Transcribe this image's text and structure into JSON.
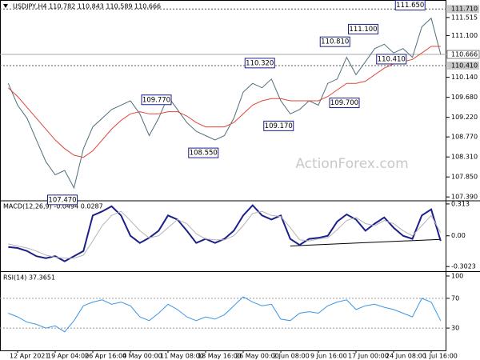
{
  "chart_data": [
    {
      "type": "line",
      "title": "USDJPY,H4 110.782 110.843 110.589 110.666",
      "watermark": "ActionForex.com",
      "ylim": [
        107.32,
        111.88
      ],
      "yticks": [
        {
          "value": 111.515,
          "label": "111.515"
        },
        {
          "value": 111.1,
          "label": "111.100"
        },
        {
          "value": 110.14,
          "label": "110.140"
        },
        {
          "value": 109.68,
          "label": "109.680"
        },
        {
          "value": 109.22,
          "label": "109.220"
        },
        {
          "value": 108.77,
          "label": "108.770"
        },
        {
          "value": 108.31,
          "label": "108.310"
        },
        {
          "value": 107.85,
          "label": "107.850"
        },
        {
          "value": 107.39,
          "label": "107.390"
        }
      ],
      "levels": [
        {
          "value": 111.71,
          "label": "111.710"
        },
        {
          "value": 110.41,
          "label": "110.410"
        }
      ],
      "last": {
        "value": 110.666,
        "label": "110.666"
      },
      "series": [
        {
          "name": "USDJPY",
          "color": "#4d6f7c",
          "values": [
            110.0,
            109.5,
            109.2,
            108.7,
            108.2,
            107.9,
            108.0,
            107.6,
            108.5,
            109.0,
            109.2,
            109.4,
            109.5,
            109.6,
            109.3,
            108.8,
            109.2,
            109.7,
            109.4,
            109.1,
            108.9,
            108.8,
            108.7,
            108.8,
            109.2,
            109.8,
            110.0,
            109.9,
            110.1,
            109.6,
            109.3,
            109.4,
            109.6,
            109.5,
            110.0,
            110.1,
            110.6,
            110.2,
            110.5,
            110.8,
            110.9,
            110.7,
            110.8,
            110.6,
            111.3,
            111.5,
            110.67
          ]
        },
        {
          "name": "MA",
          "color": "#e0453a",
          "values": [
            109.9,
            109.7,
            109.45,
            109.2,
            108.95,
            108.7,
            108.5,
            108.35,
            108.3,
            108.45,
            108.7,
            108.95,
            109.15,
            109.3,
            109.35,
            109.3,
            109.3,
            109.35,
            109.35,
            109.25,
            109.1,
            109.0,
            109.0,
            109.0,
            109.1,
            109.3,
            109.5,
            109.6,
            109.65,
            109.65,
            109.6,
            109.6,
            109.6,
            109.6,
            109.7,
            109.85,
            110.0,
            110.0,
            110.05,
            110.2,
            110.35,
            110.45,
            110.5,
            110.55,
            110.7,
            110.85,
            110.85
          ]
        }
      ],
      "annotations": [
        {
          "label": "111.650",
          "value": 111.65,
          "index": 44
        },
        {
          "label": "111.100",
          "value": 111.1,
          "index": 39
        },
        {
          "label": "110.810",
          "value": 110.81,
          "index": 36
        },
        {
          "label": "110.410",
          "value": 110.41,
          "index": 42
        },
        {
          "label": "110.320",
          "value": 110.32,
          "index": 28
        },
        {
          "label": "109.770",
          "value": 109.77,
          "index": 17
        },
        {
          "label": "109.700",
          "value": 109.7,
          "index": 37
        },
        {
          "label": "109.170",
          "value": 109.17,
          "index": 30
        },
        {
          "label": "108.550",
          "value": 108.55,
          "index": 22
        },
        {
          "label": "107.470",
          "value": 107.47,
          "index": 7
        }
      ]
    },
    {
      "type": "line",
      "title": "MACD(12,26,9) -0.0494 0.0287",
      "ylim": [
        -0.34,
        0.336
      ],
      "yticks": [
        0.313,
        {
          "value": 0,
          "label": "0.00"
        },
        -0.3023
      ],
      "series": [
        {
          "name": "MACD",
          "color": "#1b1f8a",
          "values": [
            -0.11,
            -0.12,
            -0.15,
            -0.2,
            -0.22,
            -0.2,
            -0.25,
            -0.2,
            -0.15,
            0.2,
            0.24,
            0.29,
            0.2,
            0.0,
            -0.07,
            -0.02,
            0.05,
            0.2,
            0.16,
            0.05,
            -0.07,
            -0.03,
            -0.07,
            -0.03,
            0.05,
            0.2,
            0.3,
            0.2,
            0.16,
            0.2,
            -0.03,
            -0.09,
            -0.03,
            -0.02,
            0.0,
            0.14,
            0.21,
            0.16,
            0.05,
            0.12,
            0.18,
            0.08,
            0.0,
            -0.03,
            0.2,
            0.26,
            -0.05
          ]
        },
        {
          "name": "Signal",
          "color": "#b4b4b4",
          "values": [
            -0.08,
            -0.1,
            -0.12,
            -0.15,
            -0.19,
            -0.21,
            -0.22,
            -0.22,
            -0.19,
            -0.05,
            0.1,
            0.2,
            0.24,
            0.15,
            0.05,
            -0.02,
            0.0,
            0.08,
            0.16,
            0.12,
            0.02,
            -0.03,
            -0.04,
            -0.04,
            0.0,
            0.1,
            0.22,
            0.24,
            0.2,
            0.19,
            0.08,
            -0.04,
            -0.05,
            -0.03,
            -0.02,
            0.06,
            0.15,
            0.18,
            0.12,
            0.1,
            0.15,
            0.12,
            0.05,
            0.0,
            0.1,
            0.2,
            0.03
          ]
        }
      ],
      "trendline": {
        "index": [
          30,
          46
        ],
        "values": [
          -0.1,
          -0.035
        ]
      }
    },
    {
      "type": "line",
      "title": "RSI(14) 37.3651",
      "ylim": [
        0,
        100
      ],
      "yticks": [
        100,
        70,
        30
      ],
      "levels": [
        70,
        30
      ],
      "series": [
        {
          "name": "RSI",
          "color": "#3b97e6",
          "values": [
            50,
            45,
            38,
            35,
            30,
            33,
            25,
            40,
            60,
            65,
            68,
            62,
            65,
            60,
            45,
            40,
            50,
            62,
            55,
            45,
            40,
            45,
            42,
            48,
            60,
            72,
            65,
            60,
            62,
            42,
            40,
            50,
            52,
            50,
            60,
            65,
            68,
            55,
            60,
            62,
            58,
            55,
            50,
            45,
            70,
            65,
            40
          ]
        }
      ],
      "categories": [
        null,
        "12 Apr 2021",
        null,
        null,
        null,
        "19 Apr 04:00",
        null,
        null,
        null,
        "26 Apr 16:00",
        null,
        null,
        null,
        "4 May 00:00",
        null,
        null,
        null,
        "11 May 08:00",
        null,
        null,
        null,
        "18 May 16:00",
        null,
        null,
        null,
        "26 May 00:00",
        null,
        null,
        null,
        "2 Jun 08:00",
        null,
        null,
        null,
        "9 Jun 16:00",
        null,
        null,
        null,
        "17 Jun 00:00",
        null,
        null,
        null,
        "24 Jun 08:00",
        null,
        null,
        null,
        "1 Jul 16:00",
        null
      ]
    }
  ]
}
